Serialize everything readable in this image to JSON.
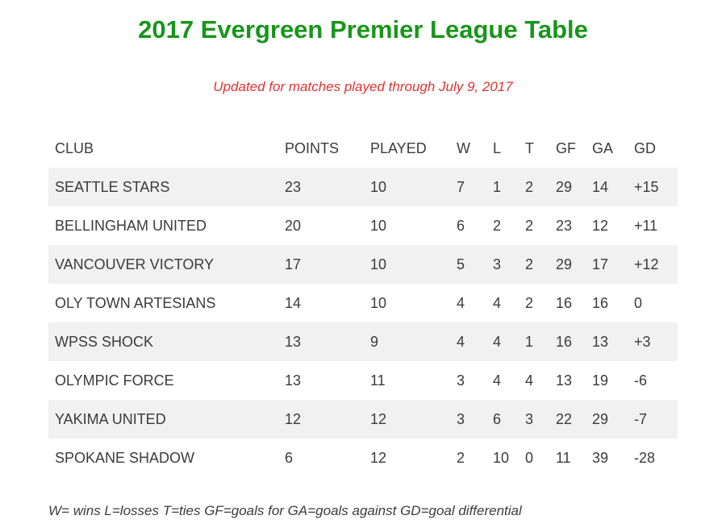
{
  "page": {
    "title": "2017 Evergreen Premier League Table",
    "subtitle": "Updated for matches played through July 9, 2017",
    "footnote": "W= wins L=losses T=ties GF=goals for GA=goals against GD=goal differential"
  },
  "colors": {
    "title_green": "#18961b",
    "subtitle_red": "#dd3333",
    "row_stripe": "#f1f1f1",
    "text": "#3b3b3b"
  },
  "chart_data": {
    "type": "table",
    "columns": [
      "CLUB",
      "POINTS",
      "PLAYED",
      "W",
      "L",
      "T",
      "GF",
      "GA",
      "GD"
    ],
    "rows": [
      [
        "SEATTLE STARS",
        "23",
        "10",
        "7",
        "1",
        "2",
        "29",
        "14",
        "+15"
      ],
      [
        "BELLINGHAM UNITED",
        "20",
        "10",
        "6",
        "2",
        "2",
        "23",
        "12",
        "+11"
      ],
      [
        "VANCOUVER VICTORY",
        "17",
        "10",
        "5",
        "3",
        "2",
        "29",
        "17",
        "+12"
      ],
      [
        "OLY TOWN ARTESIANS",
        "14",
        "10",
        "4",
        "4",
        "2",
        "16",
        "16",
        "0"
      ],
      [
        "WPSS SHOCK",
        "13",
        "9",
        "4",
        "4",
        "1",
        "16",
        "13",
        "+3"
      ],
      [
        "OLYMPIC FORCE",
        "13",
        "11",
        "3",
        "4",
        "4",
        "13",
        "19",
        "-6"
      ],
      [
        "YAKIMA UNITED",
        "12",
        "12",
        "3",
        "6",
        "3",
        "22",
        "29",
        "-7"
      ],
      [
        "SPOKANE SHADOW",
        "6",
        "12",
        "2",
        "10",
        "0",
        "11",
        "39",
        "-28"
      ]
    ]
  }
}
